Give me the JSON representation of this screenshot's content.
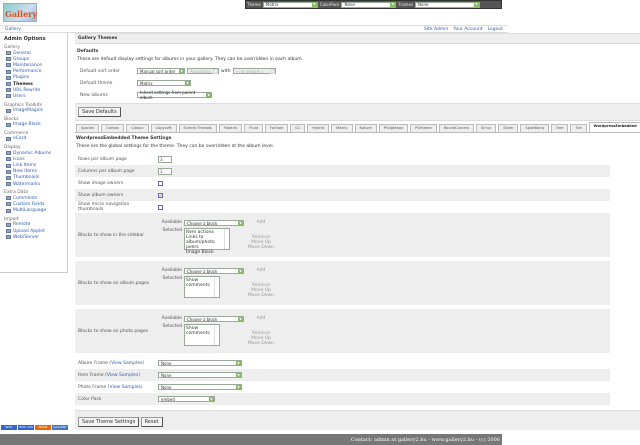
{
  "header": {
    "logo_text": "Gallery",
    "theme_label": "Theme",
    "theme_value": "Matrix",
    "colorpack_label": "ColorPack",
    "colorpack_value": "None",
    "frames_label": "Frames",
    "frames_value": "None"
  },
  "breadcrumb": {
    "home": "Gallery",
    "links": [
      "Site Admin",
      "Your Account",
      "Logout"
    ]
  },
  "sidebar": {
    "title": "Admin Options",
    "groups": [
      {
        "name": "Gallery",
        "items": [
          "General",
          "Groups",
          "Maintenance",
          "Performance",
          "Plugins",
          "Themes",
          "URL Rewrite",
          "Users"
        ]
      },
      {
        "name": "Graphics Toolkits",
        "items": [
          "ImageMagick"
        ]
      },
      {
        "name": "Blocks",
        "items": [
          "Image Block"
        ]
      },
      {
        "name": "Commerce",
        "items": [
          "eCard"
        ]
      },
      {
        "name": "Display",
        "items": [
          "Dynamic Albums",
          "Icons",
          "Link Items",
          "New Items",
          "Thumbnails",
          "Watermarks"
        ]
      },
      {
        "name": "Extra Data",
        "items": [
          "Comments",
          "Custom Fields",
          "MultiLanguage"
        ]
      },
      {
        "name": "Import",
        "items": [
          "Remote",
          "Upload Applet",
          "Web/Server"
        ]
      }
    ],
    "current": "Themes"
  },
  "page": {
    "title": "Gallery Themes",
    "defaults_heading": "Defaults",
    "defaults_desc": "These are default display settings for albums in your gallery. They can be overridden in each album.",
    "sort_label": "Default sort order",
    "sort_value": "Manual sort order",
    "sort_dir": "Ascending",
    "with_label": "with",
    "preset": "« no presort »",
    "theme_label": "Default theme",
    "theme_value": "Matrix",
    "new_albums_label": "New albums",
    "new_albums_value": "Inherit settings from parent album",
    "save_defaults": "Save Defaults"
  },
  "tabs": [
    "Ajaxian",
    "Carbon",
    "Classic",
    "CopyLeft",
    "EclecticThreads",
    "Floatrix",
    "Fluid",
    "ForSale",
    "G1",
    "Hybrid",
    "Matrix",
    "Nature",
    "PGlightbox",
    "PGtheme",
    "RoundCorners",
    "Siriux",
    "Slider",
    "SplatBang",
    "Tree",
    "Tile",
    "WordpressEmbedded"
  ],
  "active_tab": "WordpressEmbedded",
  "settings": {
    "title": "WordpressEmbedded Theme Settings",
    "desc": "These are the global settings for the theme. They can be overridden at the album level.",
    "rows_label": "Rows per album page",
    "rows_value": "3",
    "cols_label": "Columns per album page",
    "cols_value": "3",
    "show_image_owners": "Show image owners",
    "show_album_owners": "Show album owners",
    "show_micro": "Show micro navigation thumbnails",
    "checks": {
      "image_owners": false,
      "album_owners": true,
      "micro": false
    },
    "available": "Available",
    "selected": "Selected",
    "choose": "Choose a block",
    "add": "Add",
    "remove": "Remove",
    "move_up": "Move Up",
    "move_down": "Move Down",
    "blocks": [
      {
        "label": "Blocks to show in the sidebar",
        "selected": [
          "Item actions",
          "Links to album/photo peers",
          "Image Block"
        ]
      },
      {
        "label": "Blocks to show on album pages",
        "selected": [
          "Show comments"
        ]
      },
      {
        "label": "Blocks to show on photo pages",
        "selected": [
          "Show comments"
        ]
      }
    ],
    "view_samples": "View Samples",
    "album_frame": "Album Frame",
    "item_frame": "Item Frame",
    "photo_frame": "Photo Frame",
    "frame_value": "None",
    "color_pack": "Color Pack",
    "color_pack_value": "embed",
    "save": "Save Theme Settings",
    "reset": "Reset"
  },
  "badges": [
    "W3C XHTML",
    "W3C CSS",
    "MADE GALLERY",
    "GALLERY"
  ],
  "footer": "Contact: admin at gallery2.hu - www.gallery2.hu - (c) 2006"
}
